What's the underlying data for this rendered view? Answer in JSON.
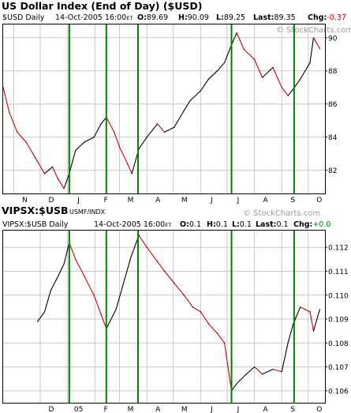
{
  "colors": {
    "up": "#000000",
    "down": "#cc0000",
    "vline": "#008000",
    "grid": "#c8c8c8",
    "chg_top": "#cc0000",
    "chg_bottom": "#008000"
  },
  "top": {
    "title": "US Dollar Index (End of Day) ($USD)",
    "series_label": "$USD Daily",
    "datetime": "14-Oct-2005 16:00",
    "et": "ET",
    "o_label": "O:",
    "o": "89.69",
    "h_label": "H:",
    "h": "90.09",
    "l_label": "L:",
    "l": "89.25",
    "last_label": "Last:",
    "last": "89.35",
    "chg_label": "Chg:",
    "chg": "-0.37",
    "watermark": "© StockCharts.com",
    "y_ticks": [
      "90",
      "88",
      "86",
      "84",
      "82"
    ]
  },
  "bottom": {
    "title": "VIPSX:$USB",
    "ratio_note": "USMF/INDX",
    "series_label": "VIPSX:$USB Daily",
    "datetime": "14-Oct-2005 16:00",
    "et": "ET",
    "o_label": "O:",
    "o": "0.1",
    "h_label": "H:",
    "h": "0.1",
    "l_label": "L:",
    "l": "0.1",
    "last_label": "Last:",
    "last": "0.1",
    "chg_label": "Chg:",
    "chg": "+0.0",
    "watermark": "© StockCharts.com",
    "y_ticks": [
      "0.112",
      "0.111",
      "0.110",
      "0.109",
      "0.108",
      "0.107",
      "0.106"
    ]
  },
  "x_months_top": [
    "N",
    "D",
    "J",
    "F",
    "M",
    "A",
    "M",
    "J",
    "J",
    "A",
    "S",
    "O"
  ],
  "x_months_bottom": [
    "D",
    "05",
    "F",
    "M",
    "A",
    "M",
    "J",
    "J",
    "A",
    "S",
    "O"
  ],
  "chart_data": [
    {
      "type": "line",
      "title": "US Dollar Index (End of Day) ($USD)",
      "ylim": [
        80.6,
        90.8
      ],
      "x_range": [
        "2004-10-20",
        "2005-10-20"
      ],
      "y_ticks": [
        90,
        88,
        86,
        84,
        82
      ],
      "grid": true,
      "y_axis_side": "right",
      "series": [
        {
          "x": [
            "2004-10-20",
            "2004-10-27",
            "2004-11-05",
            "2004-11-15",
            "2004-11-25",
            "2004-12-06",
            "2004-12-15",
            "2004-12-21",
            "2004-12-28",
            "2005-01-03",
            "2005-01-10",
            "2005-01-20",
            "2005-01-31",
            "2005-02-08",
            "2005-02-14",
            "2005-02-23",
            "2005-03-01",
            "2005-03-10",
            "2005-03-15",
            "2005-03-23",
            "2005-04-01",
            "2005-04-13",
            "2005-04-21",
            "2005-05-02",
            "2005-05-13",
            "2005-05-20",
            "2005-06-01",
            "2005-06-10",
            "2005-06-20",
            "2005-06-28",
            "2005-07-07",
            "2005-07-12",
            "2005-07-20",
            "2005-08-01",
            "2005-08-10",
            "2005-08-22",
            "2005-09-01",
            "2005-09-08",
            "2005-09-14",
            "2005-09-22",
            "2005-10-03",
            "2005-10-07",
            "2005-10-14"
          ],
          "values": [
            87.0,
            85.5,
            84.3,
            83.7,
            82.8,
            81.8,
            82.2,
            81.5,
            80.9,
            81.8,
            83.2,
            83.7,
            84.0,
            84.8,
            85.2,
            84.3,
            83.4,
            82.4,
            81.8,
            83.3,
            84.0,
            84.8,
            84.3,
            84.6,
            85.6,
            86.2,
            86.8,
            87.5,
            88.0,
            88.5,
            89.7,
            90.3,
            89.3,
            88.7,
            87.6,
            88.2,
            87.0,
            86.5,
            86.9,
            87.5,
            88.5,
            90.0,
            89.35
          ]
        }
      ]
    },
    {
      "type": "line",
      "title": "VIPSX:$USB",
      "ylim": [
        0.1055,
        0.1127
      ],
      "x_range": [
        "2004-10-20",
        "2005-10-20"
      ],
      "y_ticks": [
        0.112,
        0.111,
        0.11,
        0.109,
        0.108,
        0.107,
        0.106
      ],
      "grid": true,
      "y_axis_side": "right",
      "series": [
        {
          "x": [
            "2004-11-28",
            "2004-12-06",
            "2004-12-13",
            "2004-12-20",
            "2004-12-28",
            "2005-01-03",
            "2005-01-10",
            "2005-01-20",
            "2005-01-31",
            "2005-02-08",
            "2005-02-14",
            "2005-02-25",
            "2005-03-07",
            "2005-03-14",
            "2005-03-23",
            "2005-04-01",
            "2005-04-13",
            "2005-04-21",
            "2005-05-02",
            "2005-05-13",
            "2005-05-23",
            "2005-06-01",
            "2005-06-10",
            "2005-06-20",
            "2005-06-28",
            "2005-07-06",
            "2005-07-12",
            "2005-07-20",
            "2005-08-01",
            "2005-08-10",
            "2005-08-22",
            "2005-09-01",
            "2005-09-08",
            "2005-09-14",
            "2005-09-22",
            "2005-10-03",
            "2005-10-07",
            "2005-10-14"
          ],
          "values": [
            0.1089,
            0.1093,
            0.1102,
            0.1107,
            0.1113,
            0.1122,
            0.1115,
            0.1108,
            0.11,
            0.1092,
            0.1086,
            0.1094,
            0.1107,
            0.1116,
            0.1125,
            0.112,
            0.1114,
            0.111,
            0.1105,
            0.11,
            0.1095,
            0.1093,
            0.1088,
            0.1084,
            0.108,
            0.106,
            0.1063,
            0.1066,
            0.107,
            0.1067,
            0.1069,
            0.1068,
            0.108,
            0.1088,
            0.1095,
            0.1093,
            0.1085,
            0.1094
          ]
        }
      ]
    }
  ],
  "marker_dates": [
    "2005-01-03",
    "2005-02-14",
    "2005-03-22",
    "2005-07-06",
    "2005-09-15"
  ]
}
